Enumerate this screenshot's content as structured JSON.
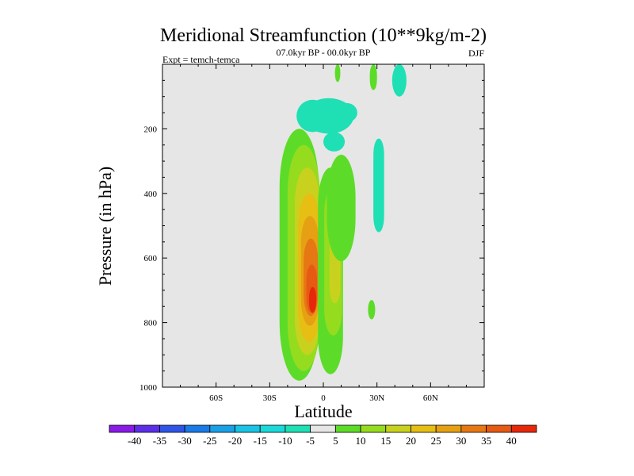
{
  "chart_data": {
    "type": "contour",
    "title": "Meridional Streamfunction (10**9kg/m-2)",
    "left_string": "Expt = temch-temca",
    "center_string": "07.0kyr BP - 00.0kyr BP",
    "right_string": "DJF",
    "xlabel": "Latitude",
    "ylabel": "Pressure (in hPa)",
    "xlim": [
      -90,
      90
    ],
    "ylim": [
      0,
      1000
    ],
    "y_inverted": true,
    "x_ticks": [
      {
        "value": -60,
        "label": "60S"
      },
      {
        "value": -30,
        "label": "30S"
      },
      {
        "value": 0,
        "label": "0"
      },
      {
        "value": 30,
        "label": "30N"
      },
      {
        "value": 60,
        "label": "60N"
      }
    ],
    "y_ticks": [
      {
        "value": 200,
        "label": "200"
      },
      {
        "value": 400,
        "label": "400"
      },
      {
        "value": 600,
        "label": "600"
      },
      {
        "value": 800,
        "label": "800"
      },
      {
        "value": 1000,
        "label": "1000"
      }
    ],
    "background_color": "#e6e6e6",
    "levels": [
      -40,
      -35,
      -30,
      -25,
      -20,
      -15,
      -10,
      -5,
      5,
      10,
      15,
      20,
      25,
      30,
      35,
      40
    ],
    "level_colors": [
      "#8a1ae6",
      "#5c2ee8",
      "#2f55e6",
      "#1a7ae6",
      "#1aa0e6",
      "#1ac3e6",
      "#1ad9d9",
      "#1ee0b4",
      "#e6e6e6",
      "#5cdc28",
      "#96dc1e",
      "#c8d21e",
      "#e6be14",
      "#e6a014",
      "#e67814",
      "#e65a14",
      "#e6280a"
    ],
    "cells": [
      {
        "lat": -13.5,
        "lat_w": 11,
        "p": 200,
        "p_w": 780,
        "value": 7
      },
      {
        "lat": -11,
        "lat_w": 9,
        "p": 250,
        "p_w": 700,
        "value": 12
      },
      {
        "lat": -9,
        "lat_w": 7,
        "p": 320,
        "p_w": 580,
        "value": 17
      },
      {
        "lat": -8,
        "lat_w": 6,
        "p": 400,
        "p_w": 460,
        "value": 22
      },
      {
        "lat": -7.5,
        "lat_w": 5,
        "p": 470,
        "p_w": 340,
        "value": 27
      },
      {
        "lat": -7,
        "lat_w": 4,
        "p": 540,
        "p_w": 240,
        "value": 32
      },
      {
        "lat": -6.5,
        "lat_w": 3,
        "p": 620,
        "p_w": 150,
        "value": 37
      },
      {
        "lat": -6,
        "lat_w": 2,
        "p": 690,
        "p_w": 80,
        "value": 42
      },
      {
        "lat": 4,
        "lat_w": 7,
        "p": 320,
        "p_w": 640,
        "value": 7
      },
      {
        "lat": 5.5,
        "lat_w": 5,
        "p": 380,
        "p_w": 460,
        "value": 12
      },
      {
        "lat": 6.5,
        "lat_w": 3,
        "p": 460,
        "p_w": 280,
        "value": 17
      },
      {
        "lat": 10,
        "lat_w": 8,
        "p": 280,
        "p_w": 330,
        "value": 7
      },
      {
        "lat": -6,
        "lat_w": 9,
        "p": 110,
        "p_w": 100,
        "value": -7
      },
      {
        "lat": 3,
        "lat_w": 14,
        "p": 105,
        "p_w": 110,
        "value": -7
      },
      {
        "lat": 13,
        "lat_w": 6,
        "p": 120,
        "p_w": 60,
        "value": -7
      },
      {
        "lat": 6,
        "lat_w": 6,
        "p": 210,
        "p_w": 60,
        "value": -7
      },
      {
        "lat": 31,
        "lat_w": 3,
        "p": 230,
        "p_w": 290,
        "value": -7
      },
      {
        "lat": 42.5,
        "lat_w": 4,
        "p": 0,
        "p_w": 100,
        "value": -7
      },
      {
        "lat": 8,
        "lat_w": 1.5,
        "p": 0,
        "p_w": 55,
        "value": 7
      },
      {
        "lat": 28,
        "lat_w": 2,
        "p": 0,
        "p_w": 80,
        "value": 7
      },
      {
        "lat": 27,
        "lat_w": 2,
        "p": 730,
        "p_w": 60,
        "value": 7
      }
    ]
  }
}
